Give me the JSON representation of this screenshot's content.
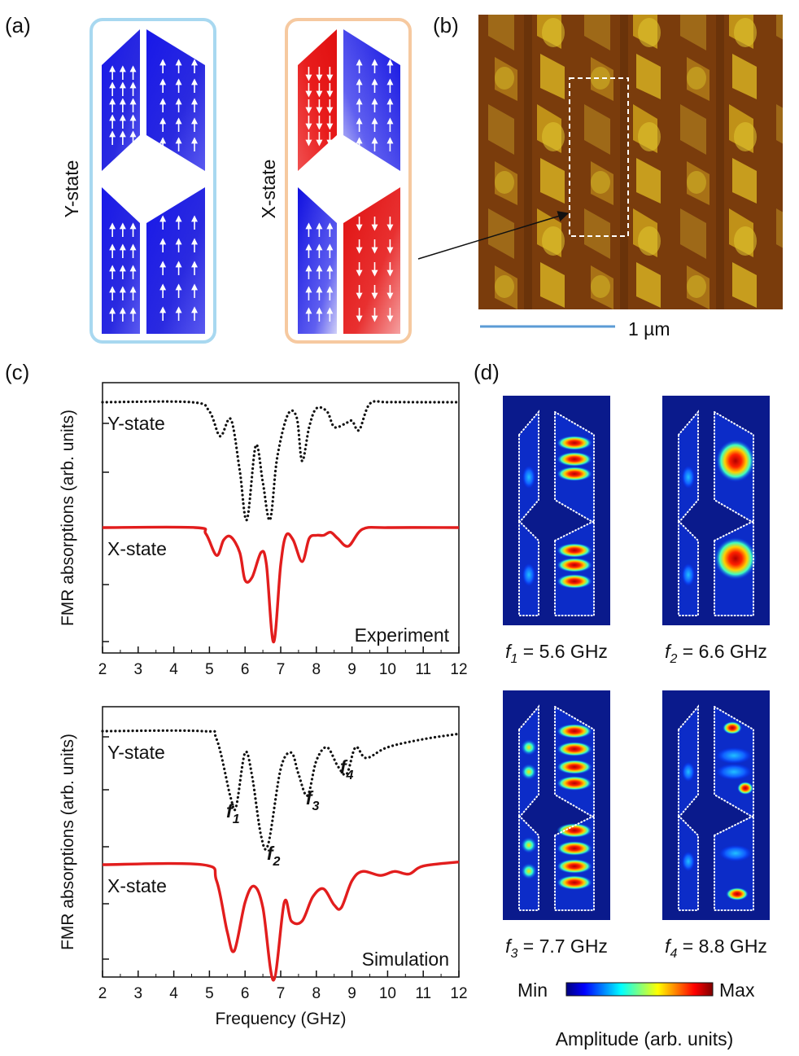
{
  "panels": {
    "a": {
      "label": "(a)",
      "states": [
        {
          "name": "Y-state",
          "frame_color": "#a8d8f0"
        },
        {
          "name": "X-state",
          "frame_color": "#f6c9a0"
        }
      ]
    },
    "b": {
      "label": "(b)",
      "scalebar_label": "1 µm",
      "scalebar_color": "#5b9bd5"
    },
    "c": {
      "label": "(c)"
    },
    "d": {
      "label": "(d)",
      "modes": [
        {
          "sym": "f",
          "sub": "1",
          "value": " = 5.6 GHz"
        },
        {
          "sym": "f",
          "sub": "2",
          "value": " = 6.6 GHz"
        },
        {
          "sym": "f",
          "sub": "3",
          "value": " = 7.7 GHz"
        },
        {
          "sym": "f",
          "sub": "4",
          "value": " = 8.8 GHz"
        }
      ],
      "colorbar_min": "Min",
      "colorbar_max": "Max",
      "colorbar_label": "Amplitude (arb. units)"
    }
  },
  "colors": {
    "blue": "#1010d8",
    "red": "#e01818",
    "mode_bg": "#0a1a8c"
  },
  "chart_data": [
    {
      "type": "line",
      "annotation": "Experiment",
      "xlabel": "",
      "ylabel": "FMR absorptions (arb. units)",
      "xlim": [
        2,
        12
      ],
      "xticks": [
        "2",
        "3",
        "4",
        "5",
        "6",
        "7",
        "8",
        "9",
        "10",
        "11",
        "12"
      ],
      "series": [
        {
          "name": "Y-state",
          "style": "dotted",
          "color": "#111111",
          "x": [
            2,
            4.5,
            5.0,
            5.3,
            5.6,
            5.85,
            6.05,
            6.3,
            6.5,
            6.7,
            6.9,
            7.2,
            7.45,
            7.6,
            7.8,
            8.0,
            8.3,
            8.5,
            8.8,
            9.0,
            9.2,
            9.5,
            10,
            11,
            12
          ],
          "y": [
            0,
            0,
            -0.3,
            -1.1,
            -0.55,
            -2.2,
            -3.8,
            -1.4,
            -2.6,
            -3.8,
            -1.8,
            -0.4,
            -0.5,
            -1.9,
            -0.8,
            -0.2,
            -0.3,
            -0.8,
            -0.7,
            -0.6,
            -0.9,
            -0.05,
            0,
            0,
            0
          ]
        },
        {
          "name": "X-state",
          "style": "solid",
          "color": "#e21d1d",
          "x": [
            2,
            4.6,
            4.9,
            5.2,
            5.4,
            5.6,
            5.85,
            6.0,
            6.2,
            6.45,
            6.6,
            6.8,
            7.0,
            7.15,
            7.35,
            7.6,
            7.8,
            8.0,
            8.2,
            8.4,
            8.6,
            8.9,
            9.3,
            10,
            12
          ],
          "y": [
            0,
            0,
            -0.2,
            -0.9,
            -0.4,
            -0.3,
            -0.8,
            -1.7,
            -1.6,
            -0.8,
            -1.2,
            -3.7,
            -1.2,
            -0.25,
            -0.4,
            -1.1,
            -0.35,
            -0.25,
            -0.25,
            -0.15,
            -0.35,
            -0.6,
            -0.05,
            0,
            0
          ]
        }
      ]
    },
    {
      "type": "line",
      "annotation": "Simulation",
      "xlabel": "Frequency (GHz)",
      "ylabel": "FMR absorptions (arb. units)",
      "xlim": [
        2,
        12
      ],
      "xticks": [
        "2",
        "3",
        "4",
        "5",
        "6",
        "7",
        "8",
        "9",
        "10",
        "11",
        "12"
      ],
      "series": [
        {
          "name": "Y-state",
          "style": "dotted",
          "color": "#111111",
          "x": [
            2,
            4.8,
            5.2,
            5.6,
            5.75,
            6.0,
            6.2,
            6.45,
            6.65,
            7.0,
            7.3,
            7.5,
            7.75,
            8.0,
            8.3,
            8.6,
            8.85,
            9.1,
            9.4,
            10,
            11,
            12
          ],
          "y": [
            0,
            0,
            -0.3,
            -2.5,
            -2.8,
            -0.8,
            -1.7,
            -3.9,
            -4.2,
            -1.4,
            -0.8,
            -1.6,
            -2.4,
            -1.1,
            -0.6,
            -1.3,
            -1.6,
            -0.6,
            -1.0,
            -0.6,
            -0.3,
            -0.1
          ]
        },
        {
          "name": "X-state",
          "style": "solid",
          "color": "#e21d1d",
          "x": [
            2,
            4.8,
            5.2,
            5.5,
            5.7,
            6.0,
            6.25,
            6.5,
            6.8,
            7.1,
            7.3,
            7.6,
            7.9,
            8.2,
            8.5,
            8.7,
            9.0,
            9.3,
            9.8,
            10.2,
            10.6,
            11,
            12
          ],
          "y": [
            0,
            0,
            -0.6,
            -2.5,
            -3.2,
            -1.4,
            -0.8,
            -1.6,
            -4.3,
            -1.4,
            -2.1,
            -2.1,
            -1.2,
            -0.9,
            -1.5,
            -1.6,
            -0.6,
            -0.25,
            -0.4,
            -0.25,
            -0.35,
            -0.05,
            0.1
          ]
        }
      ],
      "peak_markers": [
        {
          "sym": "f",
          "sub": "1",
          "x": 5.7
        },
        {
          "sym": "f",
          "sub": "2",
          "x": 6.7
        },
        {
          "sym": "f",
          "sub": "3",
          "x": 7.75
        },
        {
          "sym": "f",
          "sub": "4",
          "x": 8.8
        }
      ]
    }
  ]
}
